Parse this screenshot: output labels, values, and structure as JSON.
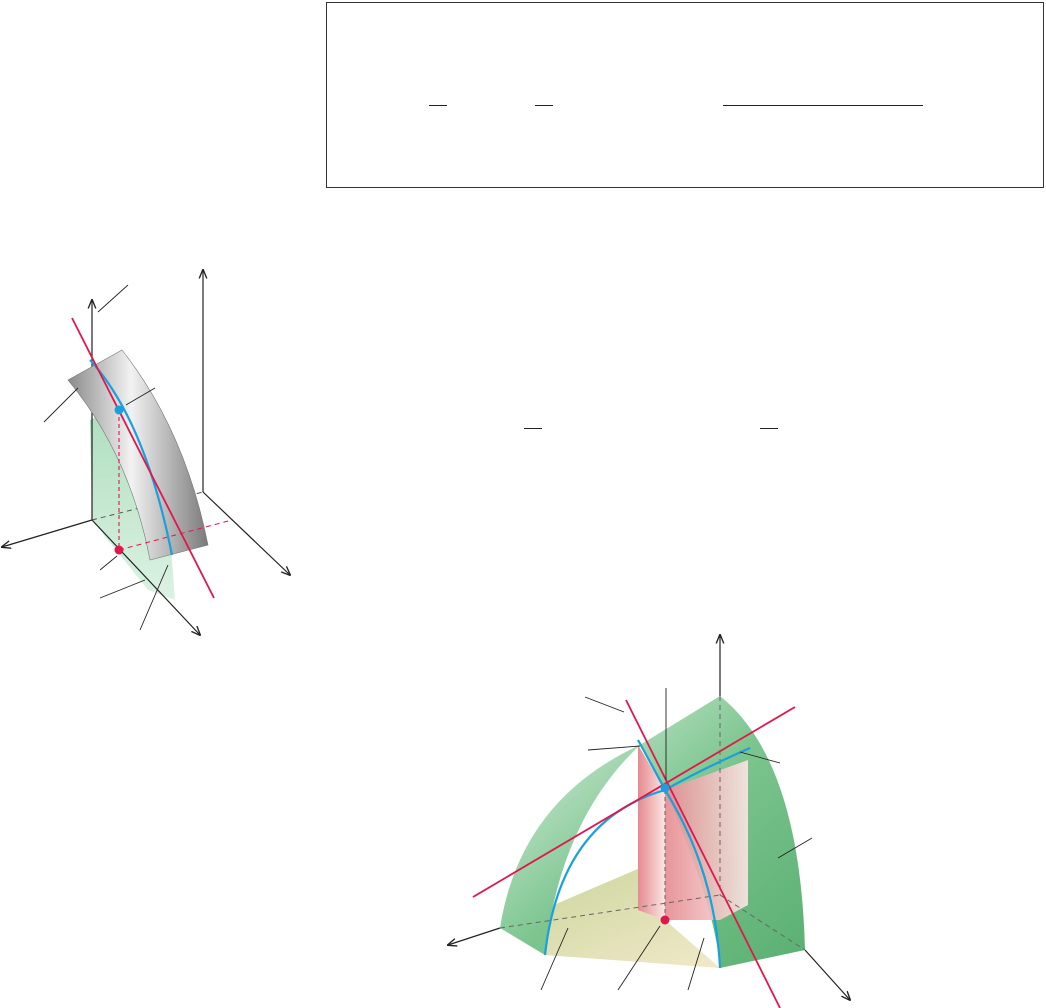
{
  "colors": {
    "axis": "#222222",
    "tangent_line": "#e0174b",
    "trace_curve": "#1aa0dc",
    "surface_gray": "#9a9a9a",
    "surface_green": "#5fb87a",
    "plane_green": "#b7e2c5",
    "plane_pink": "#e88a90",
    "ground_tan": "#d9cf9a",
    "point_on_surface": "#1aa0dc",
    "point_in_domain": "#e0174b"
  },
  "icons": [
    "arrow-head",
    "dot-marker"
  ]
}
